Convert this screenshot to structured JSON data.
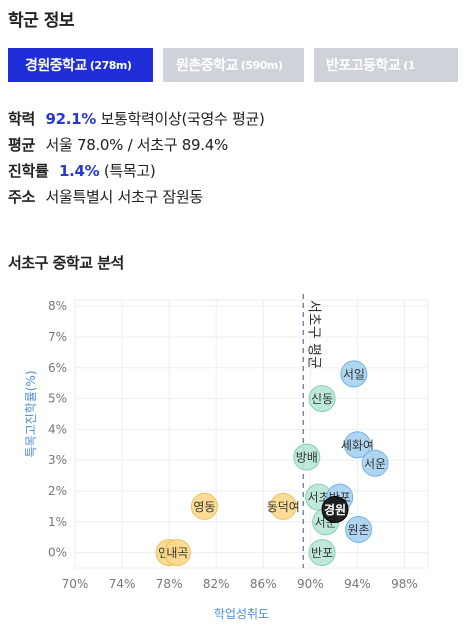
{
  "title": "학군 정보",
  "tabs": [
    {
      "name": "경원중학교",
      "distance": "(278m)",
      "active": true
    },
    {
      "name": "원촌중학교",
      "distance": "(590m)",
      "active": false
    },
    {
      "name": "반포고등학교",
      "distance": "(1",
      "active": false
    }
  ],
  "info": {
    "academic": {
      "label": "학력",
      "value": "92.1%",
      "desc": "보통학력이상(국영수 평균)"
    },
    "average": {
      "label": "평균",
      "text": "서울 78.0% / 서초구 89.4%"
    },
    "advance": {
      "label": "진학률",
      "value": "1.4%",
      "desc": "(특목고)"
    },
    "address": {
      "label": "주소",
      "text": "서울특별시 서초구 잠원동"
    }
  },
  "section_title": "서초구 중학교 분석",
  "chart_data": {
    "type": "scatter",
    "xlabel": "학업성취도",
    "ylabel": "특목고진학률(%)",
    "xlim": [
      70,
      100
    ],
    "ylim": [
      -0.5,
      8.2
    ],
    "xticks": [
      "70%",
      "74%",
      "78%",
      "82%",
      "86%",
      "90%",
      "94%",
      "98%"
    ],
    "yticks": [
      "0%",
      "1%",
      "2%",
      "3%",
      "4%",
      "5%",
      "6%",
      "7%",
      "8%"
    ],
    "ref_line": {
      "x": 89.4,
      "label": "서초구 평균"
    },
    "colors": {
      "blue": "#a8d2f0",
      "teal": "#b8e6d8",
      "yellow": "#fbd98c",
      "highlight": "#111111"
    },
    "points": [
      {
        "name": "서일",
        "x": 93.7,
        "y": 5.8,
        "color": "blue"
      },
      {
        "name": "신동",
        "x": 91.0,
        "y": 5.0,
        "color": "teal"
      },
      {
        "name": "세화여",
        "x": 94.0,
        "y": 3.5,
        "color": "blue"
      },
      {
        "name": "방배",
        "x": 89.7,
        "y": 3.1,
        "color": "teal"
      },
      {
        "name": "서운",
        "x": 95.5,
        "y": 2.9,
        "color": "blue"
      },
      {
        "name": "영동",
        "x": 81.0,
        "y": 1.5,
        "color": "yellow"
      },
      {
        "name": "동덕여",
        "x": 87.7,
        "y": 1.5,
        "color": "yellow"
      },
      {
        "name": "서초",
        "x": 90.7,
        "y": 1.8,
        "color": "teal"
      },
      {
        "name": "반포",
        "x": 92.5,
        "y": 1.8,
        "color": "blue"
      },
      {
        "name": "서문",
        "x": 91.3,
        "y": 1.0,
        "color": "teal"
      },
      {
        "name": "원촌",
        "x": 94.1,
        "y": 0.75,
        "color": "blue"
      },
      {
        "name": "경원",
        "x": 92.1,
        "y": 1.4,
        "color": "highlight"
      },
      {
        "name": "반포",
        "x": 91.0,
        "y": 0.0,
        "color": "teal"
      },
      {
        "name": "언남",
        "x": 78.0,
        "y": 0.0,
        "color": "yellow"
      },
      {
        "name": "내곡",
        "x": 78.7,
        "y": 0.0,
        "color": "yellow"
      }
    ]
  }
}
